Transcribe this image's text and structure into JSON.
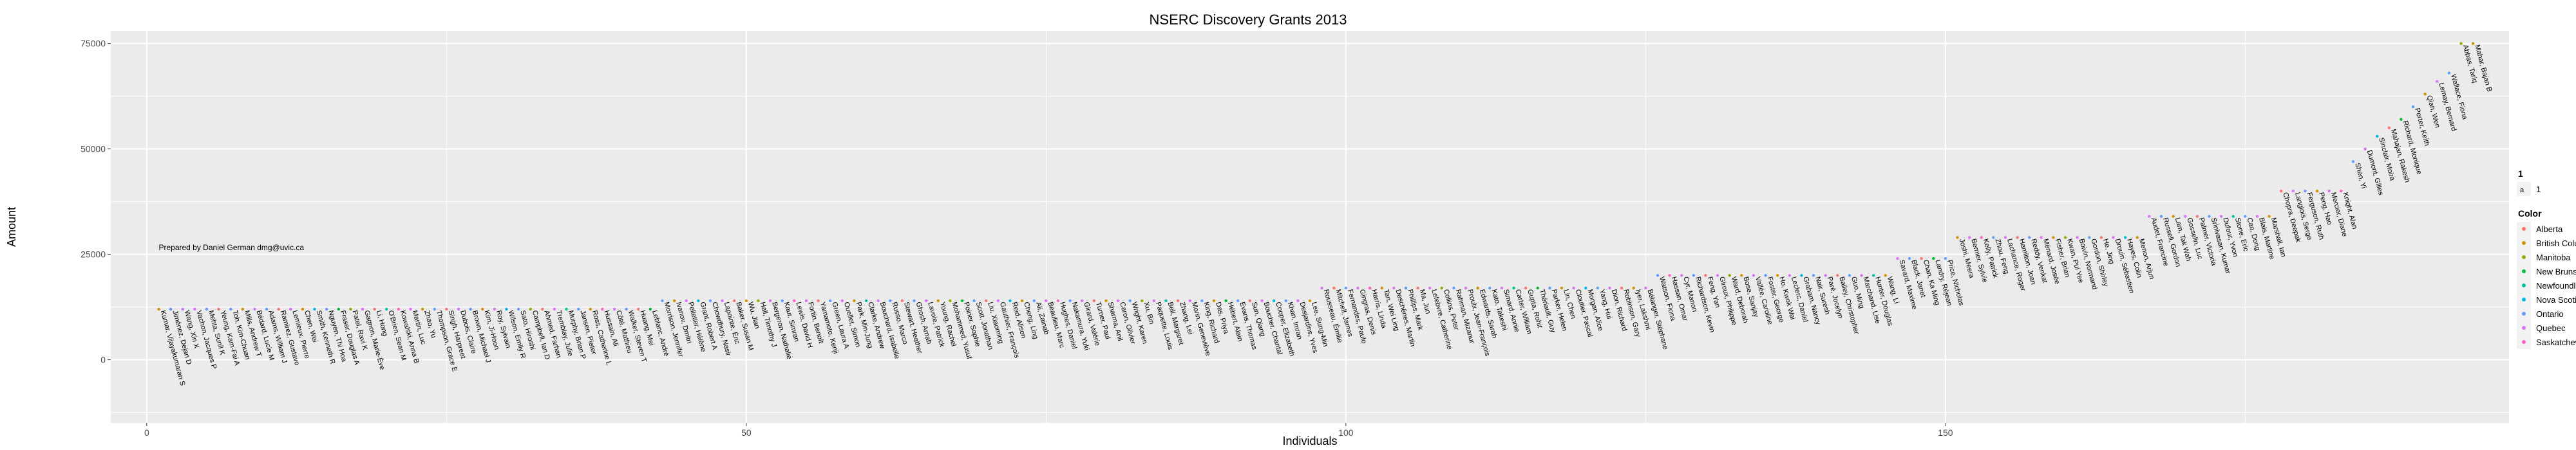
{
  "chart_data": {
    "type": "scatter",
    "title": "NSERC Discovery Grants 2013",
    "xlabel": "Individuals",
    "ylabel": "Amount",
    "xlim": [
      -3,
      197
    ],
    "ylim": [
      -15000,
      78000
    ],
    "x_ticks": [
      0,
      50,
      100,
      150
    ],
    "x_tick_labels": [
      "0",
      "50",
      "100",
      "150"
    ],
    "y_ticks": [
      0,
      25000,
      50000,
      75000
    ],
    "y_tick_labels": [
      "0",
      "25000",
      "50000",
      "75000"
    ],
    "grid": true,
    "annotation": {
      "text": "Prepared by Daniel German dmg@uvic.ca",
      "x": 1,
      "y": 26000
    },
    "legend": {
      "position": "right",
      "size_title": "1",
      "size_entries": [
        "1"
      ],
      "color_title": "Color",
      "entries": [
        {
          "name": "Alberta",
          "color": "#F8766D"
        },
        {
          "name": "British Columbia",
          "color": "#D39200"
        },
        {
          "name": "Manitoba",
          "color": "#93AA00"
        },
        {
          "name": "New Brunswick",
          "color": "#00BA38"
        },
        {
          "name": "Newfoundland",
          "color": "#00C19F"
        },
        {
          "name": "Nova Scotia",
          "color": "#00B9E3"
        },
        {
          "name": "Ontario",
          "color": "#619CFF"
        },
        {
          "name": "Quebec",
          "color": "#DB72FB"
        },
        {
          "name": "Saskatchewan",
          "color": "#FF61C3"
        }
      ]
    },
    "y_tiers": [
      {
        "x_from": 1,
        "x_to": 42,
        "y": 12000
      },
      {
        "x_from": 43,
        "x_to": 97,
        "y": 14000
      },
      {
        "x_from": 98,
        "x_to": 125,
        "y": 17000
      },
      {
        "x_from": 126,
        "x_to": 145,
        "y": 20000
      },
      {
        "x_from": 146,
        "x_to": 150,
        "y": 24000
      },
      {
        "x_from": 151,
        "x_to": 166,
        "y": 29000
      },
      {
        "x_from": 167,
        "x_to": 177,
        "y": 34000
      },
      {
        "x_from": 178,
        "x_to": 183,
        "y": 40000
      },
      {
        "x_from": 184,
        "x_to": 184,
        "y": 47000
      },
      {
        "x_from": 185,
        "x_to": 185,
        "y": 50000
      },
      {
        "x_from": 186,
        "x_to": 186,
        "y": 53000
      },
      {
        "x_from": 187,
        "x_to": 187,
        "y": 55000
      },
      {
        "x_from": 188,
        "x_to": 188,
        "y": 57000
      },
      {
        "x_from": 189,
        "x_to": 189,
        "y": 60000
      },
      {
        "x_from": 190,
        "x_to": 190,
        "y": 63000
      },
      {
        "x_from": 191,
        "x_to": 191,
        "y": 66000
      },
      {
        "x_from": 192,
        "x_to": 192,
        "y": 68000
      },
      {
        "x_from": 193,
        "x_to": 193,
        "y": 75000
      }
    ],
    "points": [
      {
        "name": "Kumar, Vijayakumaran S",
        "province": "British Columbia"
      },
      {
        "name": "Jiménez, Dejan D",
        "province": "Ontario"
      },
      {
        "name": "Wang, Xin X",
        "province": "Quebec"
      },
      {
        "name": "Vachon, Jacques P",
        "province": "Quebec"
      },
      {
        "name": "Mehta, Sunil K",
        "province": "Ontario"
      },
      {
        "name": "Yeung, Kam-Fai A",
        "province": "Alberta"
      },
      {
        "name": "Toh, Kim-Chuan",
        "province": "Ontario"
      },
      {
        "name": "Mills, Andrew T",
        "province": "British Columbia"
      },
      {
        "name": "Bédard, Lucie M",
        "province": "Quebec"
      },
      {
        "name": "Adams, William J",
        "province": "Ontario"
      },
      {
        "name": "Ramirez, Gustavo",
        "province": "Alberta"
      },
      {
        "name": "Lemieux, Pierre",
        "province": "Quebec"
      },
      {
        "name": "Chen, Wei",
        "province": "British Columbia"
      },
      {
        "name": "Smith, Kenneth R",
        "province": "Nova Scotia"
      },
      {
        "name": "Nguyen, Thi Hoa",
        "province": "Ontario"
      },
      {
        "name": "Fraser, Douglas A",
        "province": "New Brunswick"
      },
      {
        "name": "Patel, Ravi K",
        "province": "Manitoba"
      },
      {
        "name": "Gagnon, Marie-Ève",
        "province": "Quebec"
      },
      {
        "name": "Li, Hong",
        "province": "Alberta"
      },
      {
        "name": "O'Brien, Sean M",
        "province": "Newfoundland"
      },
      {
        "name": "Kowalski, Anna B",
        "province": "Saskatchewan"
      },
      {
        "name": "Martin, Luc",
        "province": "Quebec"
      },
      {
        "name": "Zhao, Yu",
        "province": "British Columbia"
      },
      {
        "name": "Thompson, Grace E",
        "province": "Ontario"
      },
      {
        "name": "Singh, Harpreet",
        "province": "Alberta"
      },
      {
        "name": "Dubois, Claire",
        "province": "Quebec"
      },
      {
        "name": "Brown, Michael J",
        "province": "Ontario"
      },
      {
        "name": "Kim, Ji-Hoon",
        "province": "British Columbia"
      },
      {
        "name": "Roy, Sylvain",
        "province": "Quebec"
      },
      {
        "name": "Wilson, Emily R",
        "province": "Nova Scotia"
      },
      {
        "name": "Sato, Hiroshi",
        "province": "Ontario"
      },
      {
        "name": "Campbell, Ian D",
        "province": "Manitoba"
      },
      {
        "name": "Ahmed, Farhan",
        "province": "Alberta"
      },
      {
        "name": "Tremblay, Julie",
        "province": "Quebec"
      },
      {
        "name": "Murphy, Brian P",
        "province": "Newfoundland"
      },
      {
        "name": "Jansen, Pieter",
        "province": "Ontario"
      },
      {
        "name": "Ross, Catherine L",
        "province": "British Columbia"
      },
      {
        "name": "Hussain, Ali",
        "province": "Saskatchewan"
      },
      {
        "name": "Côté, Mathieu",
        "province": "Quebec"
      },
      {
        "name": "Walker, Steven T",
        "province": "Ontario"
      },
      {
        "name": "Huang, Mei",
        "province": "Alberta"
      },
      {
        "name": "Leblanc, André",
        "province": "New Brunswick"
      },
      {
        "name": "Morrison, Jennifer",
        "province": "Ontario"
      },
      {
        "name": "Ivanov, Dmitri",
        "province": "British Columbia"
      },
      {
        "name": "Pelletier, Hélène",
        "province": "Quebec"
      },
      {
        "name": "Grant, Robert A",
        "province": "Nova Scotia"
      },
      {
        "name": "Chowdhury, Nasir",
        "province": "Ontario"
      },
      {
        "name": "Lapointe, Éric",
        "province": "Quebec"
      },
      {
        "name": "Baker, Susan M",
        "province": "Alberta"
      },
      {
        "name": "Wu, Jian",
        "province": "British Columbia"
      },
      {
        "name": "Hall, Timothy J",
        "province": "Manitoba"
      },
      {
        "name": "Bergeron, Nathalie",
        "province": "Quebec"
      },
      {
        "name": "Kaur, Simran",
        "province": "Ontario"
      },
      {
        "name": "Lewis, David H",
        "province": "Saskatchewan"
      },
      {
        "name": "Fortin, Benoît",
        "province": "Quebec"
      },
      {
        "name": "Yamamoto, Kenji",
        "province": "Alberta"
      },
      {
        "name": "Green, Laura A",
        "province": "Ontario"
      },
      {
        "name": "Ouellet, Simon",
        "province": "Quebec"
      },
      {
        "name": "Park, Min-Jung",
        "province": "British Columbia"
      },
      {
        "name": "Clarke, Andrew",
        "province": "Newfoundland"
      },
      {
        "name": "Bouchard, Isabelle",
        "province": "Quebec"
      },
      {
        "name": "Russo, Marco",
        "province": "Ontario"
      },
      {
        "name": "Stewart, Heather",
        "province": "Alberta"
      },
      {
        "name": "Ghosh, Arnab",
        "province": "Ontario"
      },
      {
        "name": "Lavoie, Patrick",
        "province": "Quebec"
      },
      {
        "name": "Young, Rachel",
        "province": "British Columbia"
      },
      {
        "name": "Mohammed, Yusuf",
        "province": "Manitoba"
      },
      {
        "name": "Poirier, Sophie",
        "province": "New Brunswick"
      },
      {
        "name": "Scott, Jonathan",
        "province": "Ontario"
      },
      {
        "name": "Liu, Xiaoming",
        "province": "Alberta"
      },
      {
        "name": "Gauthier, François",
        "province": "Quebec"
      },
      {
        "name": "Reid, Alison",
        "province": "Nova Scotia"
      },
      {
        "name": "Cheng, Ling",
        "province": "British Columbia"
      },
      {
        "name": "Ali, Zainab",
        "province": "Ontario"
      },
      {
        "name": "Beaulieu, Marc",
        "province": "Quebec"
      },
      {
        "name": "Hughes, Daniel",
        "province": "Saskatchewan"
      },
      {
        "name": "Nakamura, Yuki",
        "province": "Ontario"
      },
      {
        "name": "Girard, Valérie",
        "province": "Quebec"
      },
      {
        "name": "Turner, Paul",
        "province": "Alberta"
      },
      {
        "name": "Sharma, Anil",
        "province": "British Columbia"
      },
      {
        "name": "Caron, Olivier",
        "province": "Quebec"
      },
      {
        "name": "Wright, Karen",
        "province": "Ontario"
      },
      {
        "name": "Xu, Bin",
        "province": "Manitoba"
      },
      {
        "name": "Paquette, Louis",
        "province": "Quebec"
      },
      {
        "name": "Bell, Margaret",
        "province": "Newfoundland"
      },
      {
        "name": "Zhang, Lei",
        "province": "Alberta"
      },
      {
        "name": "Morin, Geneviève",
        "province": "Quebec"
      },
      {
        "name": "King, Richard",
        "province": "Ontario"
      },
      {
        "name": "Das, Priya",
        "province": "British Columbia"
      },
      {
        "name": "Hébert, Alain",
        "province": "New Brunswick"
      },
      {
        "name": "Evans, Thomas",
        "province": "Ontario"
      },
      {
        "name": "Sun, Qiang",
        "province": "Alberta"
      },
      {
        "name": "Boucher, Chantal",
        "province": "Quebec"
      },
      {
        "name": "Cooper, Elizabeth",
        "province": "Nova Scotia"
      },
      {
        "name": "Khan, Imran",
        "province": "Ontario"
      },
      {
        "name": "Desjardins, Yves",
        "province": "Quebec"
      },
      {
        "name": "Lee, Sung-Min",
        "province": "British Columbia"
      },
      {
        "name": "Rousseau, Émilie",
        "province": "Quebec"
      },
      {
        "name": "Mitchell, James",
        "province": "Alberta"
      },
      {
        "name": "Fernandes, Paulo",
        "province": "Ontario"
      },
      {
        "name": "Gingras, Denis",
        "province": "Quebec"
      },
      {
        "name": "Harris, Linda",
        "province": "Saskatchewan"
      },
      {
        "name": "Tan, Wei Ling",
        "province": "British Columbia"
      },
      {
        "name": "Deschênes, Martin",
        "province": "Quebec"
      },
      {
        "name": "Phillips, Mark",
        "province": "Ontario"
      },
      {
        "name": "Ma, Jun",
        "province": "Alberta"
      },
      {
        "name": "Lefebvre, Catherine",
        "province": "Quebec"
      },
      {
        "name": "Collins, Peter",
        "province": "Manitoba"
      },
      {
        "name": "Rahman, Mizanur",
        "province": "Ontario"
      },
      {
        "name": "Proulx, Jean-François",
        "province": "Quebec"
      },
      {
        "name": "Edwards, Sarah",
        "province": "British Columbia"
      },
      {
        "name": "Kato, Takeshi",
        "province": "Ontario"
      },
      {
        "name": "Simard, Annie",
        "province": "Quebec"
      },
      {
        "name": "Carter, William",
        "province": "Newfoundland"
      },
      {
        "name": "Gupta, Rohit",
        "province": "Alberta"
      },
      {
        "name": "Thériault, Guy",
        "province": "New Brunswick"
      },
      {
        "name": "Parker, Helen",
        "province": "Ontario"
      },
      {
        "name": "Lin, Chen",
        "province": "British Columbia"
      },
      {
        "name": "Cloutier, Pascal",
        "province": "Quebec"
      },
      {
        "name": "Morgan, Alice",
        "province": "Nova Scotia"
      },
      {
        "name": "Yang, Hui",
        "province": "Ontario"
      },
      {
        "name": "Dion, Richard",
        "province": "Quebec"
      },
      {
        "name": "Robinson, Gary",
        "province": "Alberta"
      },
      {
        "name": "Iyer, Lakshmi",
        "province": "British Columbia"
      },
      {
        "name": "Bélanger, Stéphane",
        "province": "Quebec"
      },
      {
        "name": "Watson, Fiona",
        "province": "Ontario"
      },
      {
        "name": "Hassan, Omar",
        "province": "Saskatchewan"
      },
      {
        "name": "Cyr, Manon",
        "province": "Quebec"
      },
      {
        "name": "Richardson, Kevin",
        "province": "Ontario"
      },
      {
        "name": "Feng, Yan",
        "province": "Alberta"
      },
      {
        "name": "Giroux, Philippe",
        "province": "Quebec"
      },
      {
        "name": "Ward, Deborah",
        "province": "Manitoba"
      },
      {
        "name": "Bose, Sanjay",
        "province": "British Columbia"
      },
      {
        "name": "Vallée, Caroline",
        "province": "Quebec"
      },
      {
        "name": "Foster, George",
        "province": "Ontario"
      },
      {
        "name": "Ho, Kwok Wai",
        "province": "British Columbia"
      },
      {
        "name": "Leclerc, Daniel",
        "province": "Quebec"
      },
      {
        "name": "Graham, Nancy",
        "province": "Nova Scotia"
      },
      {
        "name": "Nair, Suresh",
        "province": "Ontario"
      },
      {
        "name": "Paré, Jocelyn",
        "province": "Quebec"
      },
      {
        "name": "Bailey, Christopher",
        "province": "Alberta"
      },
      {
        "name": "Guo, Ming",
        "province": "Ontario"
      },
      {
        "name": "Marchand, Lise",
        "province": "Quebec"
      },
      {
        "name": "Hunter, Douglas",
        "province": "Newfoundland"
      },
      {
        "name": "Wang, Li",
        "province": "British Columbia"
      },
      {
        "name": "Savard, Maxime",
        "province": "Quebec"
      },
      {
        "name": "Black, Janet",
        "province": "Ontario"
      },
      {
        "name": "Chan, Ka Ming",
        "province": "Alberta"
      },
      {
        "name": "Landry, Réjean",
        "province": "New Brunswick"
      },
      {
        "name": "Price, Nicholas",
        "province": "Ontario"
      },
      {
        "name": "Joshi, Meera",
        "province": "British Columbia"
      },
      {
        "name": "Bernier, Sylvie",
        "province": "Quebec"
      },
      {
        "name": "Kelly, Patrick",
        "province": "Saskatchewan"
      },
      {
        "name": "Zhou, Feng",
        "province": "Ontario"
      },
      {
        "name": "Lachance, Roger",
        "province": "Quebec"
      },
      {
        "name": "Hamilton, Joan",
        "province": "Alberta"
      },
      {
        "name": "Reddy, Venkat",
        "province": "Ontario"
      },
      {
        "name": "Ménard, Josée",
        "province": "Quebec"
      },
      {
        "name": "Fisher, Brian",
        "province": "British Columbia"
      },
      {
        "name": "Kwan, Pui Yee",
        "province": "Manitoba"
      },
      {
        "name": "Boivin, Normand",
        "province": "Quebec"
      },
      {
        "name": "Gordon, Shirley",
        "province": "Ontario"
      },
      {
        "name": "He, Jing",
        "province": "Alberta"
      },
      {
        "name": "Drouin, Sébastien",
        "province": "Quebec"
      },
      {
        "name": "Hayes, Colin",
        "province": "Nova Scotia"
      },
      {
        "name": "Menon, Arjun",
        "province": "British Columbia"
      },
      {
        "name": "Audet, Francine",
        "province": "Quebec"
      },
      {
        "name": "Russell, Gordon",
        "province": "Ontario"
      },
      {
        "name": "Lam, Tak Wah",
        "province": "British Columbia"
      },
      {
        "name": "Gosselin, Luc",
        "province": "Quebec"
      },
      {
        "name": "Palmer, Victoria",
        "province": "Alberta"
      },
      {
        "name": "Srinivasan, Kumar",
        "province": "Ontario"
      },
      {
        "name": "Dufour, Yvon",
        "province": "Quebec"
      },
      {
        "name": "Stone, Eric",
        "province": "Newfoundland"
      },
      {
        "name": "Cao, Dong",
        "province": "Ontario"
      },
      {
        "name": "Blais, Martine",
        "province": "Quebec"
      },
      {
        "name": "Marshall, Ian",
        "province": "British Columbia"
      },
      {
        "name": "Chopra, Deepak",
        "province": "Alberta"
      },
      {
        "name": "Langlois, Serge",
        "province": "Quebec"
      },
      {
        "name": "Ferguson, Ruth",
        "province": "Ontario"
      },
      {
        "name": "Peng, Hao",
        "province": "British Columbia"
      },
      {
        "name": "Mercier, Diane",
        "province": "Quebec"
      },
      {
        "name": "Knight, Alan",
        "province": "Saskatchewan"
      },
      {
        "name": "Shen, Yi",
        "province": "Ontario"
      },
      {
        "name": "Dumont, Gilles",
        "province": "Quebec"
      },
      {
        "name": "Sinclair, Moira",
        "province": "Nova Scotia"
      },
      {
        "name": "Mahajan, Rakesh",
        "province": "Alberta"
      },
      {
        "name": "Richard, Monique",
        "province": "New Brunswick"
      },
      {
        "name": "Porter, Keith",
        "province": "Ontario"
      },
      {
        "name": "Qian, Wen",
        "province": "British Columbia"
      },
      {
        "name": "Lemay, Bernard",
        "province": "Quebec"
      },
      {
        "name": "Wallace, Fiona",
        "province": "Ontario"
      },
      {
        "name": "Abbas, Tariq",
        "province": "Manitoba"
      },
      {
        "name": "Mahar, Bajan B",
        "province": "British Columbia"
      }
    ]
  }
}
